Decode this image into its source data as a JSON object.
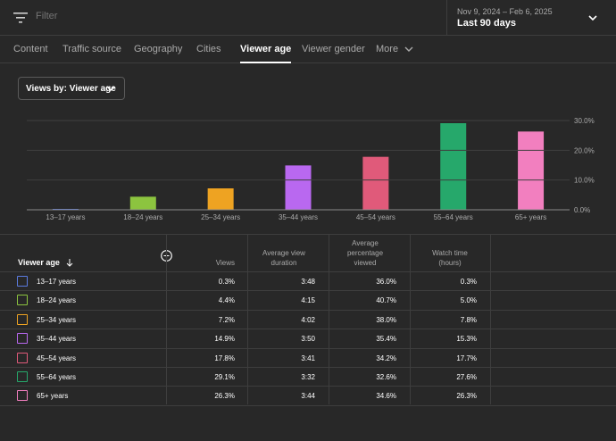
{
  "filter": {
    "placeholder": "Filter"
  },
  "date": {
    "range": "Nov 9, 2024 – Feb 6, 2025",
    "label": "Last 90 days"
  },
  "tabs": [
    "Content",
    "Traffic source",
    "Geography",
    "Cities",
    "Viewer age",
    "Viewer gender",
    "More"
  ],
  "active_tab": "Viewer age",
  "views_dropdown": {
    "label": "Views by: Viewer age"
  },
  "chart_data": {
    "type": "bar",
    "categories": [
      "13–17 years",
      "18–24 years",
      "25–34 years",
      "35–44 years",
      "45–54 years",
      "55–64 years",
      "65+ years"
    ],
    "values": [
      0.3,
      4.4,
      7.2,
      14.9,
      17.8,
      29.1,
      26.3
    ],
    "colors": [
      "#5b7be0",
      "#8cc43f",
      "#eea322",
      "#b968f0",
      "#e05a7a",
      "#26a86b",
      "#f27fbf"
    ],
    "ylim": [
      0,
      30
    ],
    "yticks": [
      "0.0%",
      "10.0%",
      "20.0%",
      "30.0%"
    ],
    "ytick_values": [
      0,
      10,
      20,
      30
    ],
    "grid": true
  },
  "table": {
    "headers": {
      "age": "Viewer age",
      "views": "Views",
      "duration": [
        "Average view",
        "duration"
      ],
      "percentage": [
        "Average",
        "percentage",
        "viewed"
      ],
      "watch": [
        "Watch time",
        "(hours)"
      ]
    },
    "rows": [
      {
        "age": "13–17 years",
        "views": "0.3%",
        "duration": "3:48",
        "percentage": "36.0%",
        "watch": "0.3%",
        "color": "#5b7be0"
      },
      {
        "age": "18–24 years",
        "views": "4.4%",
        "duration": "4:15",
        "percentage": "40.7%",
        "watch": "5.0%",
        "color": "#8cc43f"
      },
      {
        "age": "25–34 years",
        "views": "7.2%",
        "duration": "4:02",
        "percentage": "38.0%",
        "watch": "7.8%",
        "color": "#eea322"
      },
      {
        "age": "35–44 years",
        "views": "14.9%",
        "duration": "3:50",
        "percentage": "35.4%",
        "watch": "15.3%",
        "color": "#b968f0"
      },
      {
        "age": "45–54 years",
        "views": "17.8%",
        "duration": "3:41",
        "percentage": "34.2%",
        "watch": "17.7%",
        "color": "#e05a7a"
      },
      {
        "age": "55–64 years",
        "views": "29.1%",
        "duration": "3:32",
        "percentage": "32.6%",
        "watch": "27.6%",
        "color": "#26a86b"
      },
      {
        "age": "65+ years",
        "views": "26.3%",
        "duration": "3:44",
        "percentage": "34.6%",
        "watch": "26.3%",
        "color": "#f27fbf"
      }
    ]
  }
}
